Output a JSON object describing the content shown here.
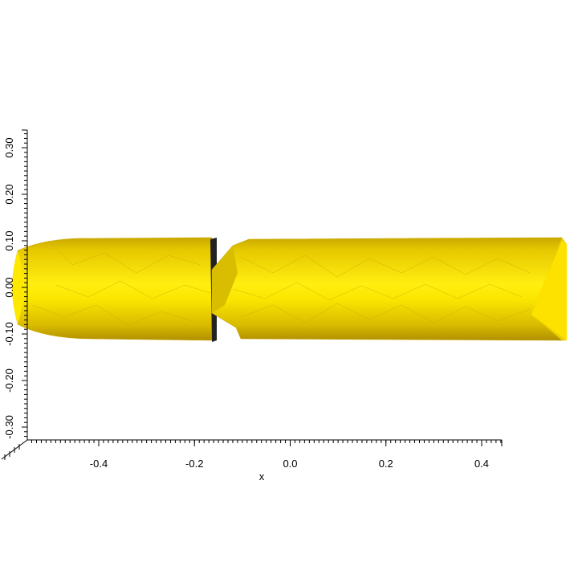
{
  "scene": {
    "object": "yellow tubular mesh (two segments)",
    "mesh_color": "#f2d600",
    "mesh_highlight": "#ffee00",
    "mesh_shadow": "#b89a00",
    "background": "#ffffff"
  },
  "axes": {
    "x": {
      "title": "x",
      "ticks": [
        "-0.4",
        "-0.2",
        "0.0",
        "0.2",
        "0.4"
      ],
      "tick_values": [
        -0.4,
        -0.2,
        0.0,
        0.2,
        0.4
      ],
      "range": [
        -0.55,
        0.44
      ]
    },
    "y": {
      "title": "",
      "ticks": [
        "0.30",
        "0.20",
        "0.10",
        "0.00",
        "-0.10",
        "-0.20",
        "-0.30"
      ],
      "tick_values": [
        0.3,
        0.2,
        0.1,
        0.0,
        -0.1,
        -0.2,
        -0.3
      ],
      "range": [
        -0.33,
        0.33
      ]
    }
  }
}
